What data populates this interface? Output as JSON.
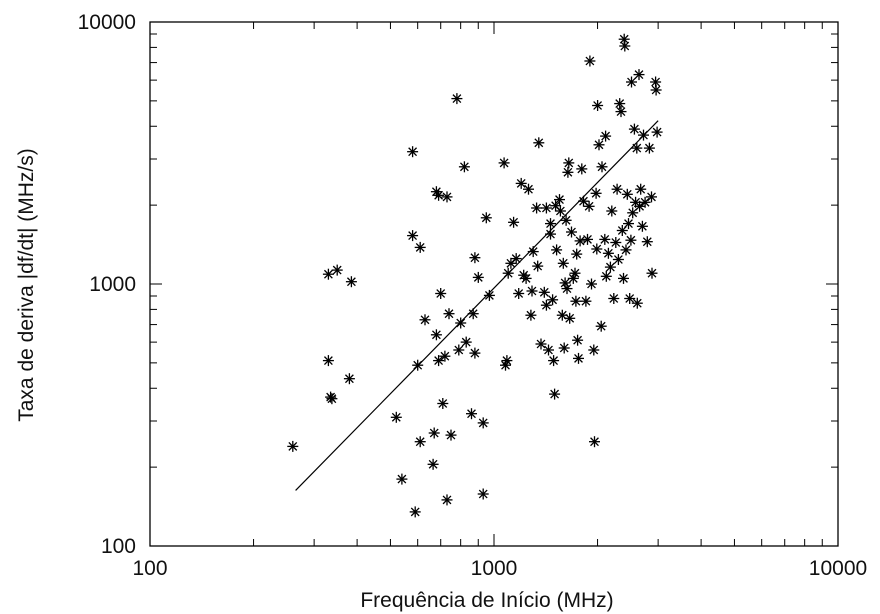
{
  "chart_data": {
    "type": "scatter",
    "title": "",
    "xlabel": "Frequência de Início (MHz)",
    "ylabel": "Taxa de deriva |df/dt|  (MHz/s)",
    "xscale": "log",
    "yscale": "log",
    "xlim": [
      100,
      10000
    ],
    "ylim": [
      100,
      10000
    ],
    "xticks": [
      100,
      1000,
      10000
    ],
    "yticks": [
      100,
      1000,
      10000
    ],
    "xtick_labels": [
      "100",
      "1000",
      "10000"
    ],
    "ytick_labels": [
      "100",
      "1000",
      "10000"
    ],
    "grid": false,
    "legend": "none",
    "marker": "*",
    "marker_color": "#000000",
    "fit_line": {
      "x": [
        265,
        3000
      ],
      "y": [
        163,
        4200
      ]
    },
    "points": [
      [
        260,
        240
      ],
      [
        330,
        1090
      ],
      [
        350,
        1130
      ],
      [
        385,
        1020
      ],
      [
        330,
        510
      ],
      [
        335,
        370
      ],
      [
        338,
        365
      ],
      [
        380,
        435
      ],
      [
        520,
        310
      ],
      [
        540,
        180
      ],
      [
        580,
        1530
      ],
      [
        580,
        3200
      ],
      [
        600,
        490
      ],
      [
        610,
        1380
      ],
      [
        610,
        250
      ],
      [
        630,
        730
      ],
      [
        590,
        135
      ],
      [
        670,
        270
      ],
      [
        665,
        205
      ],
      [
        680,
        2250
      ],
      [
        690,
        2180
      ],
      [
        700,
        920
      ],
      [
        680,
        640
      ],
      [
        690,
        510
      ],
      [
        710,
        350
      ],
      [
        720,
        530
      ],
      [
        730,
        2150
      ],
      [
        740,
        770
      ],
      [
        730,
        150
      ],
      [
        750,
        265
      ],
      [
        780,
        5100
      ],
      [
        790,
        560
      ],
      [
        800,
        710
      ],
      [
        820,
        2800
      ],
      [
        830,
        600
      ],
      [
        860,
        320
      ],
      [
        880,
        1260
      ],
      [
        870,
        770
      ],
      [
        880,
        545
      ],
      [
        900,
        1060
      ],
      [
        930,
        295
      ],
      [
        930,
        158
      ],
      [
        950,
        1790
      ],
      [
        970,
        905
      ],
      [
        1070,
        2900
      ],
      [
        1080,
        490
      ],
      [
        1090,
        510
      ],
      [
        1100,
        1100
      ],
      [
        1120,
        1200
      ],
      [
        1140,
        1720
      ],
      [
        1160,
        1250
      ],
      [
        1180,
        920
      ],
      [
        1200,
        2420
      ],
      [
        1220,
        1080
      ],
      [
        1240,
        1050
      ],
      [
        1260,
        2300
      ],
      [
        1280,
        760
      ],
      [
        1290,
        940
      ],
      [
        1300,
        1330
      ],
      [
        1330,
        1950
      ],
      [
        1340,
        1170
      ],
      [
        1350,
        3460
      ],
      [
        1370,
        590
      ],
      [
        1400,
        930
      ],
      [
        1420,
        1950
      ],
      [
        1420,
        830
      ],
      [
        1440,
        560
      ],
      [
        1460,
        1700
      ],
      [
        1460,
        1550
      ],
      [
        1480,
        870
      ],
      [
        1490,
        510
      ],
      [
        1500,
        380
      ],
      [
        1510,
        1990
      ],
      [
        1520,
        1350
      ],
      [
        1550,
        2100
      ],
      [
        1560,
        1900
      ],
      [
        1580,
        760
      ],
      [
        1590,
        1200
      ],
      [
        1600,
        570
      ],
      [
        1610,
        1010
      ],
      [
        1620,
        1750
      ],
      [
        1630,
        960
      ],
      [
        1640,
        2670
      ],
      [
        1650,
        2900
      ],
      [
        1660,
        740
      ],
      [
        1680,
        1580
      ],
      [
        1700,
        1050
      ],
      [
        1720,
        1100
      ],
      [
        1730,
        860
      ],
      [
        1740,
        1300
      ],
      [
        1750,
        610
      ],
      [
        1760,
        520
      ],
      [
        1780,
        1460
      ],
      [
        1800,
        2750
      ],
      [
        1820,
        2070
      ],
      [
        1850,
        860
      ],
      [
        1870,
        1480
      ],
      [
        1890,
        1980
      ],
      [
        1900,
        7100
      ],
      [
        1920,
        1000
      ],
      [
        1950,
        560
      ],
      [
        1960,
        250
      ],
      [
        1980,
        2220
      ],
      [
        1990,
        1360
      ],
      [
        2000,
        4800
      ],
      [
        2020,
        3400
      ],
      [
        2050,
        690
      ],
      [
        2060,
        2800
      ],
      [
        2100,
        1480
      ],
      [
        2110,
        3670
      ],
      [
        2120,
        1070
      ],
      [
        2150,
        1310
      ],
      [
        2180,
        1160
      ],
      [
        2200,
        1900
      ],
      [
        2230,
        880
      ],
      [
        2260,
        1440
      ],
      [
        2280,
        2300
      ],
      [
        2300,
        1240
      ],
      [
        2320,
        4880
      ],
      [
        2340,
        4550
      ],
      [
        2360,
        1600
      ],
      [
        2380,
        1050
      ],
      [
        2390,
        8600
      ],
      [
        2400,
        8100
      ],
      [
        2420,
        1350
      ],
      [
        2440,
        2200
      ],
      [
        2460,
        1700
      ],
      [
        2480,
        880
      ],
      [
        2500,
        1470
      ],
      [
        2510,
        5900
      ],
      [
        2530,
        1870
      ],
      [
        2560,
        3900
      ],
      [
        2580,
        2050
      ],
      [
        2600,
        3300
      ],
      [
        2610,
        845
      ],
      [
        2640,
        6300
      ],
      [
        2650,
        1980
      ],
      [
        2670,
        2300
      ],
      [
        2700,
        1660
      ],
      [
        2720,
        3700
      ],
      [
        2750,
        2050
      ],
      [
        2790,
        1450
      ],
      [
        2830,
        3300
      ],
      [
        2870,
        2150
      ],
      [
        2880,
        1100
      ],
      [
        2950,
        5900
      ],
      [
        2960,
        5500
      ],
      [
        2980,
        3800
      ]
    ]
  }
}
